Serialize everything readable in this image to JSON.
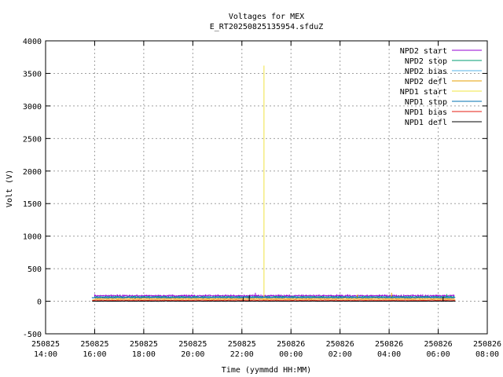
{
  "chart_data": {
    "type": "line",
    "title": "Voltages for MEX",
    "subtitle": "E_RT20250825135954.sfduZ",
    "xlabel": "Time (yymmdd HH:MM)",
    "ylabel": "Volt (V)",
    "ylim": [
      -500,
      4000
    ],
    "yticks": [
      -500,
      0,
      500,
      1000,
      1500,
      2000,
      2500,
      3000,
      3500,
      4000
    ],
    "xlim": [
      "2025-08-25 14:00",
      "2025-08-26 08:00"
    ],
    "xticks": [
      {
        "date": "250825",
        "time": "14:00",
        "hours": 0
      },
      {
        "date": "250825",
        "time": "16:00",
        "hours": 2
      },
      {
        "date": "250825",
        "time": "18:00",
        "hours": 4
      },
      {
        "date": "250825",
        "time": "20:00",
        "hours": 6
      },
      {
        "date": "250825",
        "time": "22:00",
        "hours": 8
      },
      {
        "date": "250826",
        "time": "00:00",
        "hours": 10
      },
      {
        "date": "250826",
        "time": "02:00",
        "hours": 12
      },
      {
        "date": "250826",
        "time": "04:00",
        "hours": 14
      },
      {
        "date": "250826",
        "time": "06:00",
        "hours": 16
      },
      {
        "date": "250826",
        "time": "08:00",
        "hours": 18
      }
    ],
    "grid": true,
    "legend_position": "top-right",
    "series": [
      {
        "name": "NPD2 start",
        "color": "#9400d3",
        "level": 80,
        "noise": 18,
        "x_start": 2.0,
        "x_end": 16.7,
        "spikes": [
          [
            8.55,
            130
          ],
          [
            13.6,
            105
          ]
        ]
      },
      {
        "name": "NPD2 stop",
        "color": "#009e73",
        "level": 65,
        "noise": 12,
        "x_start": 2.0,
        "x_end": 16.7,
        "spikes": [
          [
            16.35,
            110
          ]
        ]
      },
      {
        "name": "NPD2 bias",
        "color": "#56b4e9",
        "level": 60,
        "noise": 10,
        "x_start": 2.0,
        "x_end": 16.7,
        "spikes": []
      },
      {
        "name": "NPD2 defl",
        "color": "#e69f00",
        "level": 40,
        "noise": 8,
        "x_start": 2.0,
        "x_end": 16.7,
        "spikes": [
          [
            14.1,
            130
          ],
          [
            12.7,
            100
          ]
        ]
      },
      {
        "name": "NPD1 start",
        "color": "#f0e442",
        "level": 20,
        "noise": 6,
        "x_start": 1.9,
        "x_end": 16.7,
        "spikes": [
          [
            8.9,
            3620
          ]
        ]
      },
      {
        "name": "NPD1 stop",
        "color": "#0072b2",
        "level": 55,
        "noise": 10,
        "x_start": 1.9,
        "x_end": 16.7,
        "spikes": []
      },
      {
        "name": "NPD1 bias",
        "color": "#e51e10",
        "level": 15,
        "noise": 5,
        "x_start": 1.9,
        "x_end": 16.7,
        "spikes": []
      },
      {
        "name": "NPD1 defl",
        "color": "#000000",
        "level": 0,
        "noise": 4,
        "x_start": 1.9,
        "x_end": 16.7,
        "spikes": [
          [
            8.3,
            90
          ],
          [
            8.05,
            60
          ],
          [
            16.2,
            70
          ]
        ]
      }
    ]
  }
}
